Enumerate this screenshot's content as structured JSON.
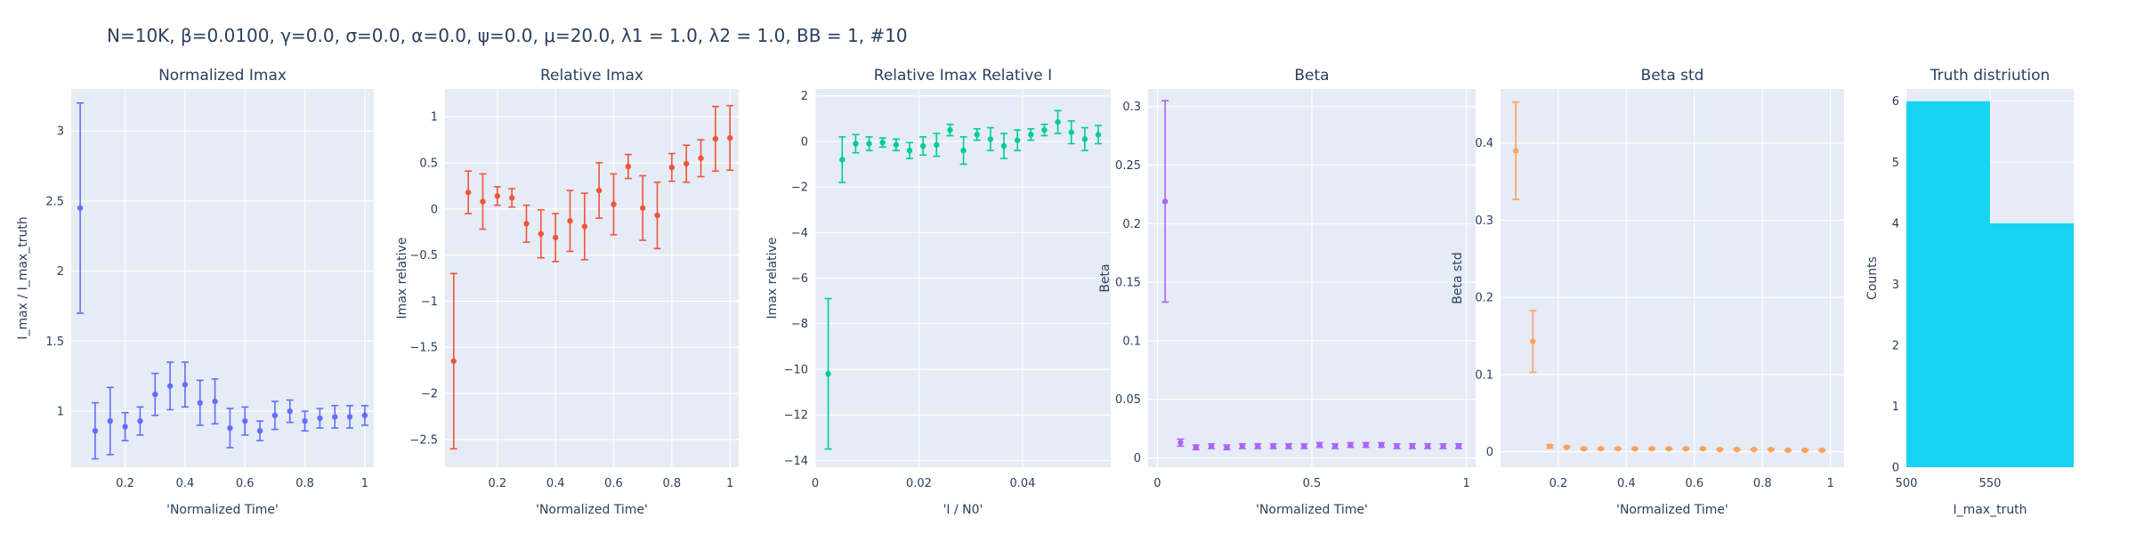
{
  "suptitle": "N=10K, β=0.0100, γ=0.0, σ=0.0,  α=0.0, ψ=0.0, μ=20.0, λ1 = 1.0, λ2 = 1.0, BB = 1, #10",
  "chart_data": [
    {
      "id": "normalized-imax",
      "type": "scatter",
      "title": "Normalized Imax",
      "xlabel": "'Normalized Time'",
      "ylabel": "I_max / I_max_truth",
      "color": "#636efa",
      "xlim": [
        0.02,
        1.03
      ],
      "ylim": [
        0.6,
        3.3
      ],
      "xticks": [
        0.2,
        0.4,
        0.6,
        0.8,
        1
      ],
      "xtick_labels": [
        "0.2",
        "0.4",
        "0.6",
        "0.8",
        "1"
      ],
      "yticks": [
        1,
        1.5,
        2,
        2.5,
        3
      ],
      "ytick_labels": [
        "1",
        "1.5",
        "2",
        "2.5",
        "3"
      ],
      "x": [
        0.05,
        0.1,
        0.15,
        0.2,
        0.25,
        0.3,
        0.35,
        0.4,
        0.45,
        0.5,
        0.55,
        0.6,
        0.65,
        0.7,
        0.75,
        0.8,
        0.85,
        0.9,
        0.95,
        1.0
      ],
      "y": [
        2.45,
        0.86,
        0.93,
        0.89,
        0.93,
        1.12,
        1.18,
        1.19,
        1.06,
        1.07,
        0.88,
        0.93,
        0.86,
        0.97,
        1.0,
        0.93,
        0.95,
        0.96,
        0.96,
        0.97
      ],
      "err": [
        0.75,
        0.2,
        0.24,
        0.1,
        0.1,
        0.15,
        0.17,
        0.16,
        0.16,
        0.16,
        0.14,
        0.1,
        0.07,
        0.1,
        0.08,
        0.07,
        0.07,
        0.08,
        0.08,
        0.07
      ]
    },
    {
      "id": "relative-imax",
      "type": "scatter",
      "title": "Relative Imax",
      "xlabel": "'Normalized Time'",
      "ylabel": "Imax relative",
      "color": "#ef553b",
      "xlim": [
        0.02,
        1.03
      ],
      "ylim": [
        -2.8,
        1.3
      ],
      "xticks": [
        0.2,
        0.4,
        0.6,
        0.8,
        1
      ],
      "xtick_labels": [
        "0.2",
        "0.4",
        "0.6",
        "0.8",
        "1"
      ],
      "yticks": [
        -2.5,
        -2,
        -1.5,
        -1,
        -0.5,
        0,
        0.5,
        1
      ],
      "ytick_labels": [
        "−2.5",
        "−2",
        "−1.5",
        "−1",
        "−0.5",
        "0",
        "0.5",
        "1"
      ],
      "x": [
        0.05,
        0.1,
        0.15,
        0.2,
        0.25,
        0.3,
        0.35,
        0.4,
        0.45,
        0.5,
        0.55,
        0.6,
        0.65,
        0.7,
        0.75,
        0.8,
        0.85,
        0.9,
        0.95,
        1.0
      ],
      "y": [
        -1.65,
        0.18,
        0.08,
        0.14,
        0.12,
        -0.16,
        -0.27,
        -0.31,
        -0.13,
        -0.19,
        0.2,
        0.05,
        0.46,
        0.01,
        -0.07,
        0.45,
        0.49,
        0.55,
        0.76,
        0.77
      ],
      "err": [
        0.95,
        0.23,
        0.3,
        0.1,
        0.1,
        0.2,
        0.26,
        0.26,
        0.33,
        0.36,
        0.3,
        0.33,
        0.13,
        0.35,
        0.36,
        0.15,
        0.2,
        0.2,
        0.35,
        0.35
      ]
    },
    {
      "id": "relative-imax-relative-i",
      "type": "scatter",
      "title": "Relative Imax Relative I",
      "xlabel": "'I / N0'",
      "ylabel": "Imax relative",
      "color": "#00cc96",
      "xlim": [
        0,
        0.057
      ],
      "ylim": [
        -14.3,
        2.3
      ],
      "xticks": [
        0,
        0.02,
        0.04
      ],
      "xtick_labels": [
        "0",
        "0.02",
        "0.04"
      ],
      "yticks": [
        -14,
        -12,
        -10,
        -8,
        -6,
        -4,
        -2,
        0,
        2
      ],
      "ytick_labels": [
        "−14",
        "−12",
        "−10",
        "−8",
        "−6",
        "−4",
        "−2",
        "0",
        "2"
      ],
      "x": [
        0.0025,
        0.0052,
        0.0078,
        0.0104,
        0.013,
        0.0156,
        0.0182,
        0.0208,
        0.0234,
        0.026,
        0.0286,
        0.0312,
        0.0338,
        0.0364,
        0.039,
        0.0416,
        0.0442,
        0.0468,
        0.0494,
        0.052,
        0.0546
      ],
      "y": [
        -10.2,
        -0.8,
        -0.1,
        -0.1,
        -0.05,
        -0.15,
        -0.4,
        -0.2,
        -0.15,
        0.5,
        -0.4,
        0.3,
        0.1,
        -0.2,
        0.05,
        0.3,
        0.5,
        0.85,
        0.4,
        0.1,
        0.3
      ],
      "err": [
        3.3,
        1.0,
        0.4,
        0.3,
        0.2,
        0.25,
        0.35,
        0.4,
        0.5,
        0.25,
        0.6,
        0.25,
        0.5,
        0.55,
        0.45,
        0.25,
        0.25,
        0.5,
        0.5,
        0.5,
        0.4
      ]
    },
    {
      "id": "beta",
      "type": "scatter",
      "title": "Beta",
      "xlabel": "'Normalized Time'",
      "ylabel": "Beta",
      "color": "#ab63fa",
      "xlim": [
        -0.03,
        1.03
      ],
      "ylim": [
        -0.008,
        0.315
      ],
      "xticks": [
        0,
        0.5,
        1
      ],
      "xtick_labels": [
        "0",
        "0.5",
        "1"
      ],
      "yticks": [
        0,
        0.05,
        0.1,
        0.15,
        0.2,
        0.25,
        0.3
      ],
      "ytick_labels": [
        "0",
        "0.05",
        "0.1",
        "0.15",
        "0.2",
        "0.25",
        "0.3"
      ],
      "x": [
        0.025,
        0.075,
        0.125,
        0.175,
        0.225,
        0.275,
        0.325,
        0.375,
        0.425,
        0.475,
        0.525,
        0.575,
        0.625,
        0.675,
        0.725,
        0.775,
        0.825,
        0.875,
        0.925,
        0.975
      ],
      "y": [
        0.219,
        0.013,
        0.009,
        0.01,
        0.009,
        0.01,
        0.01,
        0.01,
        0.01,
        0.01,
        0.011,
        0.01,
        0.011,
        0.011,
        0.011,
        0.01,
        0.01,
        0.01,
        0.01,
        0.01
      ],
      "err": [
        0.086,
        0.003,
        0.002,
        0.002,
        0.002,
        0.002,
        0.002,
        0.002,
        0.002,
        0.002,
        0.002,
        0.002,
        0.002,
        0.002,
        0.002,
        0.002,
        0.002,
        0.002,
        0.002,
        0.002
      ]
    },
    {
      "id": "beta-std",
      "type": "scatter",
      "title": "Beta std",
      "xlabel": "'Normalized Time'",
      "ylabel": "Beta std",
      "color": "#ffa15a",
      "xlim": [
        0.03,
        1.04
      ],
      "ylim": [
        -0.02,
        0.47
      ],
      "xticks": [
        0.2,
        0.4,
        0.6,
        0.8,
        1
      ],
      "xtick_labels": [
        "0.2",
        "0.4",
        "0.6",
        "0.8",
        "1"
      ],
      "yticks": [
        0,
        0.1,
        0.2,
        0.3,
        0.4
      ],
      "ytick_labels": [
        "0",
        "0.1",
        "0.2",
        "0.3",
        "0.4"
      ],
      "x": [
        0.075,
        0.125,
        0.175,
        0.225,
        0.275,
        0.325,
        0.375,
        0.425,
        0.475,
        0.525,
        0.575,
        0.625,
        0.675,
        0.725,
        0.775,
        0.825,
        0.875,
        0.925,
        0.975
      ],
      "y": [
        0.39,
        0.143,
        0.007,
        0.006,
        0.004,
        0.004,
        0.004,
        0.004,
        0.004,
        0.004,
        0.004,
        0.004,
        0.003,
        0.003,
        0.003,
        0.003,
        0.002,
        0.002,
        0.002
      ],
      "err": [
        0.063,
        0.04,
        0.002,
        0.001,
        0.001,
        0.001,
        0.001,
        0.001,
        0.001,
        0.001,
        0.001,
        0.001,
        0.001,
        0.001,
        0.001,
        0.001,
        0.001,
        0.001,
        0.001
      ]
    },
    {
      "id": "truth-distribution",
      "type": "bar",
      "title": "Truth distriution",
      "xlabel": "I_max_truth",
      "ylabel": "Counts",
      "color": "#19d3f3",
      "xlim": [
        500,
        600
      ],
      "ylim": [
        0,
        6.2
      ],
      "xticks": [
        500,
        550
      ],
      "xtick_labels": [
        "500",
        "550"
      ],
      "yticks": [
        0,
        1,
        2,
        3,
        4,
        5,
        6
      ],
      "ytick_labels": [
        "0",
        "1",
        "2",
        "3",
        "4",
        "5",
        "6"
      ],
      "bins": [
        [
          500,
          550
        ],
        [
          550,
          600
        ]
      ],
      "values": [
        6,
        4
      ]
    }
  ]
}
